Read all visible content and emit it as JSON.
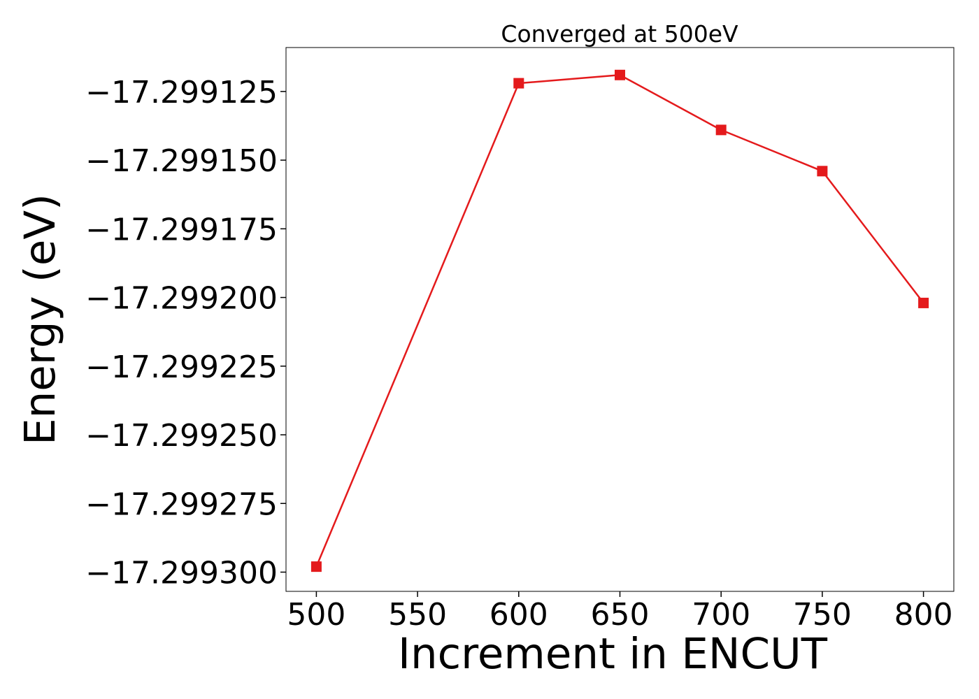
{
  "chart_data": {
    "type": "line",
    "title": "Converged at 500eV",
    "xlabel": "Increment in ENCUT",
    "ylabel": "Energy (eV)",
    "x": [
      500,
      600,
      650,
      700,
      750,
      800
    ],
    "series": [
      {
        "values": [
          -17.299298,
          -17.299122,
          -17.299119,
          -17.299139,
          -17.299154,
          -17.299202
        ],
        "color": "#e41a1c",
        "marker": "square"
      }
    ],
    "xticks": [
      500,
      550,
      600,
      650,
      700,
      750,
      800
    ],
    "xtick_labels": [
      "500",
      "550",
      "600",
      "650",
      "700",
      "750",
      "800"
    ],
    "yticks": [
      -17.299125,
      -17.29915,
      -17.299175,
      -17.2992,
      -17.299225,
      -17.29925,
      -17.299275,
      -17.2993
    ],
    "ytick_labels": [
      "−17.299125",
      "−17.299150",
      "−17.299175",
      "−17.299200",
      "−17.299225",
      "−17.299250",
      "−17.299275",
      "−17.299300"
    ],
    "xlim": [
      485,
      815
    ],
    "ylim": [
      -17.299307,
      -17.299109
    ],
    "grid": false,
    "legend": false
  }
}
